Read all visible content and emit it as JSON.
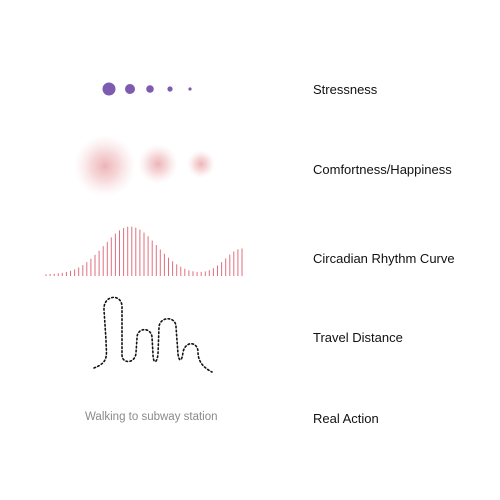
{
  "legend": {
    "stressness": "Stressness",
    "comfortness": "Comfortness/Happiness",
    "circadian": "Circadian Rhythm Curve",
    "travel": "Travel Distance",
    "real_action": "Real Action"
  },
  "real_action_text": "Walking to subway station",
  "stress_levels": [
    5,
    4,
    3,
    2,
    1
  ],
  "comfort_levels": [
    3,
    2,
    1
  ],
  "colors": {
    "stress": "#7d5bb0",
    "comfort": "#eaa6aa",
    "rhythm": "#e26e7c",
    "path": "#111111"
  }
}
